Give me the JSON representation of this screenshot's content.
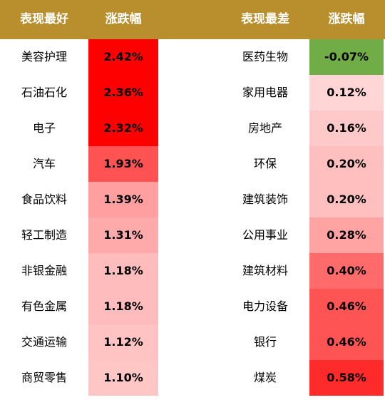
{
  "header": {
    "best_label": "表现最好",
    "change_label_left": "涨跌幅",
    "worst_label": "表现最差",
    "change_label_right": "涨跌幅"
  },
  "colors": {
    "header_bg": "#b98f2d",
    "header_text": "#ffffff",
    "negative_green": "#70ad47"
  },
  "best": [
    {
      "name": "美容护理",
      "value": "2.42%",
      "color": "#ff0000"
    },
    {
      "name": "石油石化",
      "value": "2.36%",
      "color": "#ff0000"
    },
    {
      "name": "电子",
      "value": "2.32%",
      "color": "#ff0000"
    },
    {
      "name": "汽车",
      "value": "1.93%",
      "color": "#ff5252"
    },
    {
      "name": "食品饮料",
      "value": "1.39%",
      "color": "#ff9f9f"
    },
    {
      "name": "轻工制造",
      "value": "1.31%",
      "color": "#ffaaaa"
    },
    {
      "name": "非银金融",
      "value": "1.18%",
      "color": "#ffbcbc"
    },
    {
      "name": "有色金属",
      "value": "1.18%",
      "color": "#ffbcbc"
    },
    {
      "name": "交通运输",
      "value": "1.12%",
      "color": "#ffc3c3"
    },
    {
      "name": "商贸零售",
      "value": "1.10%",
      "color": "#ffc6c6"
    }
  ],
  "worst": [
    {
      "name": "医药生物",
      "value": "-0.07%",
      "color": "#70ad47"
    },
    {
      "name": "家用电器",
      "value": "0.12%",
      "color": "#ffd5d5"
    },
    {
      "name": "房地产",
      "value": "0.16%",
      "color": "#ffc9c9"
    },
    {
      "name": "环保",
      "value": "0.20%",
      "color": "#ffbfbf"
    },
    {
      "name": "建筑装饰",
      "value": "0.20%",
      "color": "#ffbfbf"
    },
    {
      "name": "公用事业",
      "value": "0.28%",
      "color": "#ffa3a3"
    },
    {
      "name": "建筑材料",
      "value": "0.40%",
      "color": "#ff6b6b"
    },
    {
      "name": "电力设备",
      "value": "0.46%",
      "color": "#ff5454"
    },
    {
      "name": "银行",
      "value": "0.46%",
      "color": "#ff5454"
    },
    {
      "name": "煤炭",
      "value": "0.58%",
      "color": "#ff2a2a"
    }
  ]
}
